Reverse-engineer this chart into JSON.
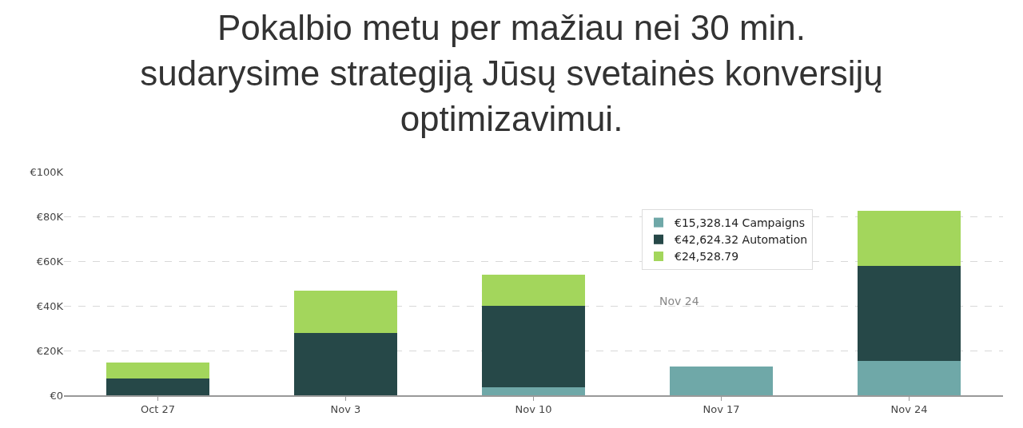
{
  "chart_data": {
    "type": "bar",
    "title": "Pokalbio metu per mažiau nei 30 min.\nsudarysime strategiją Jūsų svetainės konversijų\noptimizavimui.",
    "categories": [
      "Oct 27",
      "Nov 3",
      "Nov 10",
      "Nov 17",
      "Nov 24"
    ],
    "stacked": true,
    "series": [
      {
        "name": "€15,328.14 Campaigns",
        "color": "#6fa8a8",
        "values": [
          0,
          0,
          3600,
          12900,
          15328.14
        ]
      },
      {
        "name": "€42,624.32 Automation",
        "color": "#264848",
        "values": [
          7500,
          27900,
          36400,
          null,
          42624.32
        ]
      },
      {
        "name": "€24,528.79",
        "color": "#a3d65c",
        "values": [
          7100,
          18900,
          13900,
          null,
          24528.79
        ]
      }
    ],
    "ylim": [
      0,
      100000
    ],
    "yticks": [
      {
        "value": 0,
        "label": "€0"
      },
      {
        "value": 20000,
        "label": "€20K"
      },
      {
        "value": 40000,
        "label": "€40K"
      },
      {
        "value": 60000,
        "label": "€60K"
      },
      {
        "value": 80000,
        "label": "€80K"
      },
      {
        "value": 100000,
        "label": "€100K"
      }
    ],
    "grid": "y",
    "legend": "top right",
    "annotations": [
      "Nov 24"
    ]
  }
}
